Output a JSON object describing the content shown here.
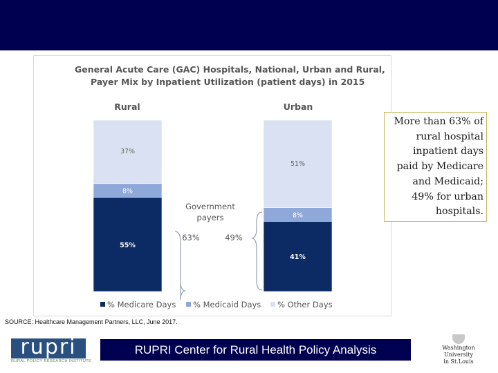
{
  "callout": {
    "lines": [
      "More than 63% of",
      "rural hospital",
      "inpatient days",
      "paid by Medicare",
      "and Medicaid;",
      "49% for urban",
      "hospitals."
    ]
  },
  "source": "SOURCE: Healthcare Management Partners, LLC, June 2017.",
  "footer": {
    "banner": "RUPRI Center for Rural Health Policy Analysis",
    "logo_word": "rupri",
    "logo_sub": "RURAL POLICY RESEARCH INSTITUTE",
    "univ_lines": [
      "Washington",
      "University",
      "in St.Louis"
    ]
  },
  "colors": {
    "topbar": "#000050",
    "medicare": "#0c2a63",
    "medicaid": "#8ea8da",
    "other": "#d9e1f2",
    "brace": "#9da6b8"
  },
  "chart_data": {
    "type": "bar",
    "stacked": true,
    "title": [
      "General Acute Care (GAC) Hospitals, National, Urban and Rural,",
      "Payer Mix by Inpatient Utilization (patient days) in 2015"
    ],
    "categories": [
      "Rural",
      "Urban"
    ],
    "series": [
      {
        "name": "% Medicare Days",
        "values": [
          55,
          41
        ]
      },
      {
        "name": "% Medicaid Days",
        "values": [
          8,
          8
        ]
      },
      {
        "name": "% Other Days",
        "values": [
          37,
          51
        ]
      }
    ],
    "data_labels": [
      [
        "55%",
        "8%",
        "37%"
      ],
      [
        "41%",
        "8%",
        "51%"
      ]
    ],
    "ylim": [
      0,
      100
    ],
    "annotation": {
      "label": [
        "Government",
        "payers"
      ],
      "rural_total": "63%",
      "urban_total": "49%"
    },
    "legend_position": "bottom"
  }
}
